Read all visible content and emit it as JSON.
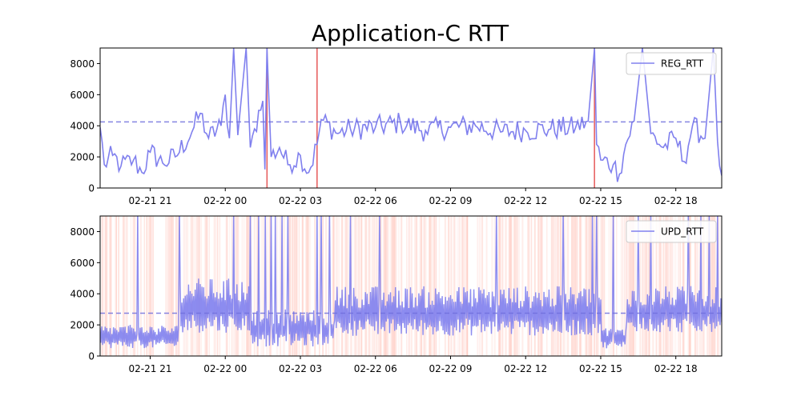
{
  "figure": {
    "title": "Application-C RTT"
  },
  "colors": {
    "series": "#8080ee",
    "mean_line": "#7070dd",
    "event_line": "#e03030",
    "shade": "#ff9a8a",
    "frame": "#000000"
  },
  "chart_data": [
    {
      "type": "line",
      "panel": "top",
      "title": "Application-C RTT",
      "legend": "top-right",
      "grid": false,
      "x_time_range": [
        "02-21 19:00",
        "02-22 19:50"
      ],
      "xticks": [
        "02-21 21",
        "02-22 00",
        "02-22 03",
        "02-22 06",
        "02-22 09",
        "02-22 12",
        "02-22 15",
        "02-22 18"
      ],
      "yticks": [
        "0",
        "2000",
        "4000",
        "6000",
        "8000"
      ],
      "ylim": [
        0,
        9000
      ],
      "mean": 4250,
      "event_times": [
        "02-22 01:40",
        "02-22 03:40",
        "02-22 14:45"
      ],
      "series": [
        {
          "name": "REG_RTT",
          "anchors": [
            [
              "02-21 19:00",
              3900
            ],
            [
              "02-21 19:10",
              1500
            ],
            [
              "02-21 19:30",
              2100
            ],
            [
              "02-21 19:50",
              1400
            ],
            [
              "02-21 20:20",
              1800
            ],
            [
              "02-21 20:40",
              1000
            ],
            [
              "02-21 21:00",
              2300
            ],
            [
              "02-21 21:30",
              1600
            ],
            [
              "02-21 22:00",
              2000
            ],
            [
              "02-21 22:40",
              3600
            ],
            [
              "02-21 23:00",
              4800
            ],
            [
              "02-21 23:20",
              3200
            ],
            [
              "02-21 23:50",
              4000
            ],
            [
              "02-22 00:00",
              6000
            ],
            [
              "02-22 00:10",
              3200
            ],
            [
              "02-22 00:20",
              9000
            ],
            [
              "02-22 00:30",
              3400
            ],
            [
              "02-22 00:50",
              9000
            ],
            [
              "02-22 01:00",
              2600
            ],
            [
              "02-22 01:10",
              3800
            ],
            [
              "02-22 01:30",
              5600
            ],
            [
              "02-22 01:35",
              1200
            ],
            [
              "02-22 01:40",
              9000
            ],
            [
              "02-22 01:50",
              2000
            ],
            [
              "02-22 02:10",
              2600
            ],
            [
              "02-22 02:30",
              1500
            ],
            [
              "02-22 03:00",
              2100
            ],
            [
              "02-22 03:20",
              1000
            ],
            [
              "02-22 03:40",
              2800
            ],
            [
              "02-22 03:50",
              4400
            ],
            [
              "02-22 04:30",
              3500
            ],
            [
              "02-22 05:00",
              3800
            ],
            [
              "02-22 06:00",
              3900
            ],
            [
              "02-22 07:00",
              4200
            ],
            [
              "02-22 08:00",
              3700
            ],
            [
              "02-22 09:00",
              3900
            ],
            [
              "02-22 10:00",
              4000
            ],
            [
              "02-22 11:00",
              3600
            ],
            [
              "02-22 12:00",
              3700
            ],
            [
              "02-22 13:00",
              3800
            ],
            [
              "02-22 14:00",
              3900
            ],
            [
              "02-22 14:30",
              4300
            ],
            [
              "02-22 14:45",
              9000
            ],
            [
              "02-22 14:50",
              2800
            ],
            [
              "02-22 15:00",
              1800
            ],
            [
              "02-22 15:30",
              1500
            ],
            [
              "02-22 15:45",
              900
            ],
            [
              "02-22 16:00",
              2800
            ],
            [
              "02-22 16:20",
              4300
            ],
            [
              "02-22 16:40",
              9000
            ],
            [
              "02-22 17:00",
              3500
            ],
            [
              "02-22 17:30",
              2600
            ],
            [
              "02-22 18:00",
              3200
            ],
            [
              "02-22 18:20",
              1700
            ],
            [
              "02-22 18:40",
              4000
            ],
            [
              "02-22 19:10",
              3200
            ],
            [
              "02-22 19:30",
              9000
            ],
            [
              "02-22 19:40",
              3000
            ],
            [
              "02-22 19:50",
              800
            ]
          ]
        }
      ]
    },
    {
      "type": "line",
      "panel": "bottom",
      "legend": "top-right",
      "grid": false,
      "x_time_range": [
        "02-21 19:00",
        "02-22 19:50"
      ],
      "xticks": [
        "02-21 21",
        "02-22 00",
        "02-22 03",
        "02-22 06",
        "02-22 09",
        "02-22 12",
        "02-22 15",
        "02-22 18"
      ],
      "yticks": [
        "0",
        "2000",
        "4000",
        "6000",
        "8000"
      ],
      "ylim": [
        0,
        9000
      ],
      "mean": 2750,
      "background": "dense vertical light-red bands across the full time range",
      "series": [
        {
          "name": "UPD_RTT",
          "regimes": [
            {
              "from": "02-21 19:00",
              "to": "02-21 22:10",
              "low": 500,
              "high": 2000
            },
            {
              "from": "02-21 22:10",
              "to": "02-22 01:00",
              "low": 1500,
              "high": 5000
            },
            {
              "from": "02-22 01:00",
              "to": "02-22 04:20",
              "low": 600,
              "high": 3000
            },
            {
              "from": "02-22 04:20",
              "to": "02-22 15:00",
              "low": 1300,
              "high": 4500
            },
            {
              "from": "02-22 15:00",
              "to": "02-22 16:00",
              "low": 500,
              "high": 1800
            },
            {
              "from": "02-22 16:00",
              "to": "02-22 19:50",
              "low": 1500,
              "high": 4500
            }
          ],
          "spike_times": [
            "02-21 20:30",
            "02-21 22:10",
            "02-22 00:20",
            "02-22 01:00",
            "02-22 01:20",
            "02-22 01:35",
            "02-22 01:50",
            "02-22 02:00",
            "02-22 02:15",
            "02-22 02:30",
            "02-22 03:40",
            "02-22 03:50",
            "02-22 04:10",
            "02-22 05:00",
            "02-22 06:10",
            "02-22 10:50",
            "02-22 13:30",
            "02-22 14:40",
            "02-22 14:50",
            "02-22 15:30",
            "02-22 16:30",
            "02-22 17:00",
            "02-22 18:30",
            "02-22 19:00",
            "02-22 19:20",
            "02-22 19:40"
          ]
        }
      ]
    }
  ]
}
